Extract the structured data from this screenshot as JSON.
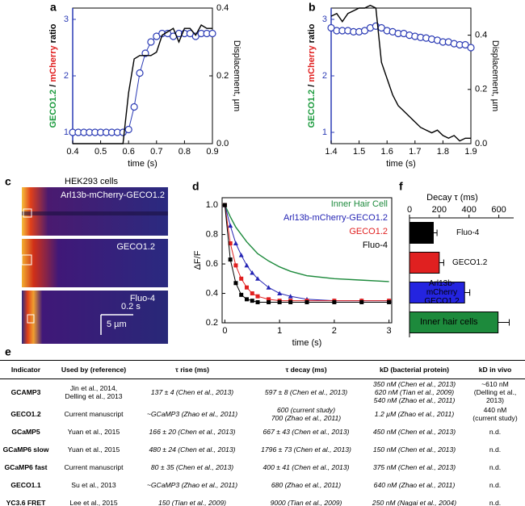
{
  "panel_c": {
    "label": "c",
    "title": "HEK293 cells",
    "rows": [
      "Arl13b-mCherry-GECO1.2",
      "GECO1.2",
      "Fluo-4"
    ],
    "scale_time": "0.2 s",
    "scale_space": "5 µm"
  },
  "chart_data": [
    {
      "type": "line",
      "panel_label": "a",
      "xlabel": "time (s)",
      "ylabel_parts": [
        "GECO1.2",
        "/",
        "mCherry",
        "ratio"
      ],
      "ylabel_colors": [
        "#1a9a3c",
        "#000000",
        "#e02020",
        "#000000"
      ],
      "y2label": "Displacement, µm",
      "x": [
        0.4,
        0.42,
        0.44,
        0.46,
        0.48,
        0.5,
        0.52,
        0.54,
        0.56,
        0.58,
        0.6,
        0.62,
        0.64,
        0.66,
        0.68,
        0.7,
        0.72,
        0.74,
        0.76,
        0.78,
        0.8,
        0.82,
        0.84,
        0.86,
        0.88,
        0.9
      ],
      "xlim": [
        0.4,
        0.9
      ],
      "xticks": [
        0.4,
        0.5,
        0.6,
        0.7,
        0.8,
        0.9
      ],
      "ylim": [
        0.8,
        3.2
      ],
      "yticks": [
        1,
        2,
        3
      ],
      "y2lim": [
        0,
        0.4
      ],
      "y2ticks": [
        {
          "value": 0,
          "label": "0.0"
        },
        0.2,
        0.4
      ],
      "axis_color": "#2b3bb5",
      "series": [
        {
          "color": "#2b3bb5",
          "marker": "circle",
          "line": true,
          "values": [
            1,
            1,
            1,
            1,
            1,
            1,
            1,
            1,
            1,
            1,
            1.05,
            1.45,
            2.05,
            2.4,
            2.6,
            2.7,
            2.75,
            2.75,
            2.7,
            2.75,
            2.75,
            2.75,
            2.7,
            2.75,
            2.75,
            2.75
          ]
        },
        {
          "color": "#000000",
          "axis": "y2",
          "line": true,
          "values": [
            0,
            0,
            0,
            0,
            0,
            0,
            0,
            0,
            0,
            0,
            0.15,
            0.25,
            0.26,
            0.26,
            0.26,
            0.27,
            0.32,
            0.33,
            0.34,
            0.3,
            0.34,
            0.34,
            0.32,
            0.35,
            0.34,
            0.34
          ]
        }
      ]
    },
    {
      "type": "line",
      "panel_label": "b",
      "xlabel": "time (s)",
      "ylabel_parts": [
        "GECO1.2",
        "/",
        "mCherry",
        "ratio"
      ],
      "ylabel_colors": [
        "#1a9a3c",
        "#000000",
        "#e02020",
        "#000000"
      ],
      "y2label": "Displacement, µm",
      "x": [
        1.4,
        1.42,
        1.44,
        1.46,
        1.48,
        1.5,
        1.52,
        1.54,
        1.56,
        1.58,
        1.6,
        1.62,
        1.64,
        1.66,
        1.68,
        1.7,
        1.72,
        1.74,
        1.76,
        1.78,
        1.8,
        1.82,
        1.84,
        1.86,
        1.88,
        1.9
      ],
      "xlim": [
        1.4,
        1.9
      ],
      "xticks": [
        1.4,
        1.5,
        1.6,
        1.7,
        1.8,
        1.9
      ],
      "ylim": [
        0.8,
        3.2
      ],
      "yticks": [
        1,
        2,
        3
      ],
      "y2lim": [
        0,
        0.5
      ],
      "y2ticks": [
        {
          "value": 0,
          "label": "0.0"
        },
        0.2,
        0.4
      ],
      "axis_color": "#2b3bb5",
      "series": [
        {
          "color": "#2b3bb5",
          "marker": "circle",
          "line": true,
          "values": [
            2.85,
            2.8,
            2.8,
            2.8,
            2.78,
            2.78,
            2.8,
            2.85,
            2.88,
            2.85,
            2.8,
            2.78,
            2.75,
            2.75,
            2.72,
            2.7,
            2.68,
            2.67,
            2.65,
            2.63,
            2.6,
            2.6,
            2.57,
            2.55,
            2.55,
            2.5
          ]
        },
        {
          "color": "#000000",
          "axis": "y2",
          "line": true,
          "values": [
            0.47,
            0.48,
            0.45,
            0.48,
            0.49,
            0.5,
            0.5,
            0.51,
            0.5,
            0.3,
            0.24,
            0.18,
            0.14,
            0.12,
            0.1,
            0.08,
            0.06,
            0.05,
            0.04,
            0.05,
            0.03,
            0.02,
            0.03,
            0.01,
            0.02,
            0.02
          ]
        }
      ]
    },
    {
      "type": "line",
      "panel_label": "d",
      "xlabel": "time (s)",
      "ylabel": "ΔF/F",
      "x": [
        0,
        0.1,
        0.2,
        0.3,
        0.4,
        0.5,
        0.6,
        0.8,
        1.0,
        1.2,
        1.5,
        2.0,
        2.5,
        3.0
      ],
      "xlim": [
        -0.05,
        3.05
      ],
      "xticks": [
        0,
        1,
        2,
        3
      ],
      "ylim": [
        0.2,
        1.05
      ],
      "yticks": [
        0.2,
        0.4,
        0.6,
        0.8,
        {
          "value": 1,
          "label": "1.0"
        }
      ],
      "series": [
        {
          "name": "Inner Hair Cell",
          "color": "#1d8a3c",
          "line": true,
          "values": [
            1.0,
            0.92,
            0.85,
            0.8,
            0.75,
            0.71,
            0.67,
            0.62,
            0.58,
            0.55,
            0.52,
            0.5,
            0.49,
            0.48
          ]
        },
        {
          "name": "Arl13b-mCherry-GECO1.2",
          "color": "#2424b4",
          "marker": "triangle",
          "line": true,
          "values": [
            1.0,
            0.86,
            0.74,
            0.66,
            0.59,
            0.54,
            0.5,
            0.44,
            0.4,
            0.38,
            0.36,
            0.35,
            0.35,
            0.35
          ]
        },
        {
          "name": "GECO1.2",
          "color": "#e02020",
          "marker": "square",
          "line": true,
          "values": [
            1.0,
            0.74,
            0.59,
            0.5,
            0.44,
            0.4,
            0.38,
            0.36,
            0.35,
            0.35,
            0.35,
            0.35,
            0.35,
            0.35
          ]
        },
        {
          "name": "Fluo-4",
          "color": "#000000",
          "marker": "square",
          "line": true,
          "values": [
            1.0,
            0.63,
            0.47,
            0.39,
            0.36,
            0.35,
            0.34,
            0.34,
            0.34,
            0.34,
            0.34,
            0.34,
            0.34,
            0.34
          ]
        }
      ]
    },
    {
      "type": "hbar",
      "panel_label": "f",
      "title": "Decay τ (ms)",
      "categories": [
        "Fluo-4",
        "GECO1.2",
        "Arl13b-\nmCherry\nGECO1.2",
        "Inner hair cells"
      ],
      "values": [
        160,
        200,
        370,
        595
      ],
      "errors": [
        25,
        30,
        35,
        75
      ],
      "colors": [
        "#000000",
        "#e02020",
        "#2424e0",
        "#1d8a3c"
      ],
      "xlim": [
        0,
        700
      ],
      "xticks": [
        0,
        200,
        400,
        600
      ]
    }
  ],
  "table": {
    "label": "e",
    "header": [
      "Indicator",
      "Used by (reference)",
      "τ rise (ms)",
      "τ decay (ms)",
      "kD (bacterial protein)",
      "kD in vivo"
    ],
    "rows": [
      [
        "GCAMP3",
        "Jin et al., 2014,\nDelling et al., 2013",
        "137 ± 4 (Chen et al., 2013)",
        "597 ± 8 (Chen et al., 2013)",
        "350 nM (Chen et al., 2013)\n620 nM (Tian et al., 2009)\n540 nM (Zhao et al., 2011)",
        "~610 nM\n(Delling et al., 2013)"
      ],
      [
        "GECO1.2",
        "Current manuscript",
        "~GCaMP3 (Zhao et al., 2011)",
        "600 (current study)\n700 (Zhao et al., 2011)",
        "1.2 µM (Zhao et al., 2011)",
        "440 nM\n(current study)"
      ],
      [
        "GCaMP5",
        "Yuan et al., 2015",
        "166 ± 20 (Chen et al., 2013)",
        "667 ± 43 (Chen et al., 2013)",
        "450 nM (Chen et al., 2013)",
        "n.d."
      ],
      [
        "GCaMP6 slow",
        "Yuan et al., 2015",
        "480 ± 24 (Chen et al., 2013)",
        "1796 ± 73 (Chen et al., 2013)",
        "150 nM (Chen et al., 2013)",
        "n.d."
      ],
      [
        "GCaMP6 fast",
        "Current manuscript",
        "80 ± 35 (Chen et al., 2013)",
        "400 ± 41 (Chen et al., 2013)",
        "375 nM (Chen et al., 2013)",
        "n.d."
      ],
      [
        "GECO1.1",
        "Su et al., 2013",
        "~GCaMP3 (Zhao et al., 2011)",
        "680 (Zhao et al., 2011)",
        "640 nM (Zhao et al., 2011)",
        "n.d."
      ],
      [
        "YC3.6 FRET",
        "Lee et al., 2015",
        "150 (Tian et al., 2009)",
        "9000 (Tian et al., 2009)",
        "250 nM (Nagai et al., 2004)",
        "n.d."
      ]
    ]
  }
}
